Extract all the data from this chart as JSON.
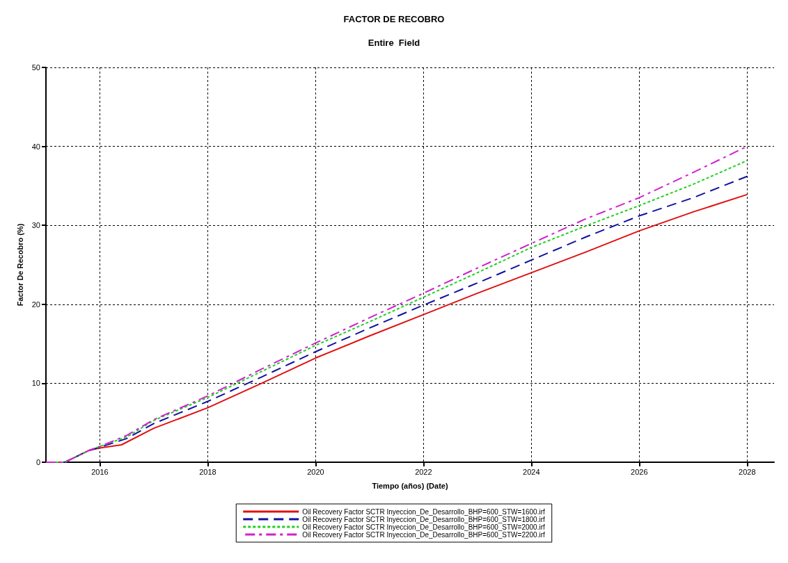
{
  "chart_data": {
    "type": "line",
    "title": "FACTOR DE RECOBRO",
    "subtitle": "Entire  Field",
    "xlabel": "Tiempo (años) (Date)",
    "ylabel": "Factor De Recobro (%)",
    "xlim": [
      2015,
      2028.5
    ],
    "xticks": [
      2016,
      2018,
      2020,
      2022,
      2024,
      2026,
      2028
    ],
    "ylim": [
      0,
      50
    ],
    "yticks": [
      0,
      10,
      20,
      30,
      40,
      50
    ],
    "grid": true,
    "legend": "bottom",
    "marker": "none",
    "series": [
      {
        "name": "Oil Recovery Factor SCTR Inyeccion_De_Desarrollo_BHP=600_STW=1600.irf",
        "color": "#e01010",
        "line_style": "solid",
        "x": [
          2015,
          2015.35,
          2015.5,
          2015.8,
          2016,
          2016.4,
          2017,
          2018,
          2019,
          2020,
          2021,
          2022,
          2023,
          2024,
          2025,
          2026,
          2027,
          2028
        ],
        "values": [
          0,
          0,
          0.5,
          1.5,
          1.8,
          2.2,
          4.3,
          6.9,
          10,
          13.2,
          16,
          18.7,
          21.4,
          24,
          26.6,
          29.3,
          31.7,
          33.9
        ]
      },
      {
        "name": "Oil Recovery Factor SCTR Inyeccion_De_Desarrollo_BHP=600_STW=1800.irf",
        "color": "#1010a0",
        "line_style": "dashed",
        "x": [
          2015,
          2015.35,
          2015.5,
          2015.8,
          2016,
          2016.5,
          2017,
          2018,
          2019,
          2020,
          2021,
          2022,
          2023,
          2024,
          2025,
          2026,
          2027,
          2028
        ],
        "values": [
          0,
          0,
          0.5,
          1.5,
          1.9,
          3,
          4.9,
          7.7,
          10.8,
          14,
          17,
          19.9,
          22.7,
          25.6,
          28.5,
          31.2,
          33.5,
          36.2
        ]
      },
      {
        "name": "Oil Recovery Factor SCTR Inyeccion_De_Desarrollo_BHP=600_STW=2000.irf",
        "color": "#20d020",
        "line_style": "dotted",
        "x": [
          2015,
          2015.35,
          2015.5,
          2015.8,
          2016,
          2016.5,
          2017,
          2018,
          2019,
          2020,
          2021,
          2022,
          2023,
          2024,
          2025,
          2026,
          2027,
          2028
        ],
        "values": [
          0,
          0,
          0.5,
          1.5,
          2,
          3.2,
          5.3,
          8.2,
          11.5,
          14.8,
          17.8,
          20.9,
          24,
          27.2,
          29.9,
          32.5,
          35.2,
          38.2
        ]
      },
      {
        "name": "Oil Recovery Factor SCTR Inyeccion_De_Desarrollo_BHP=600_STW=2200.irf",
        "color": "#d020d0",
        "line_style": "dashdot",
        "x": [
          2015,
          2015.35,
          2015.5,
          2015.8,
          2016,
          2016.5,
          2017,
          2018,
          2019,
          2020,
          2021,
          2022,
          2023,
          2024,
          2025,
          2026,
          2027,
          2028
        ],
        "values": [
          0,
          0,
          0.5,
          1.5,
          2,
          3.4,
          5.4,
          8.4,
          11.8,
          15.1,
          18.3,
          21.4,
          24.6,
          27.7,
          30.8,
          33.5,
          36.7,
          40
        ]
      }
    ]
  }
}
